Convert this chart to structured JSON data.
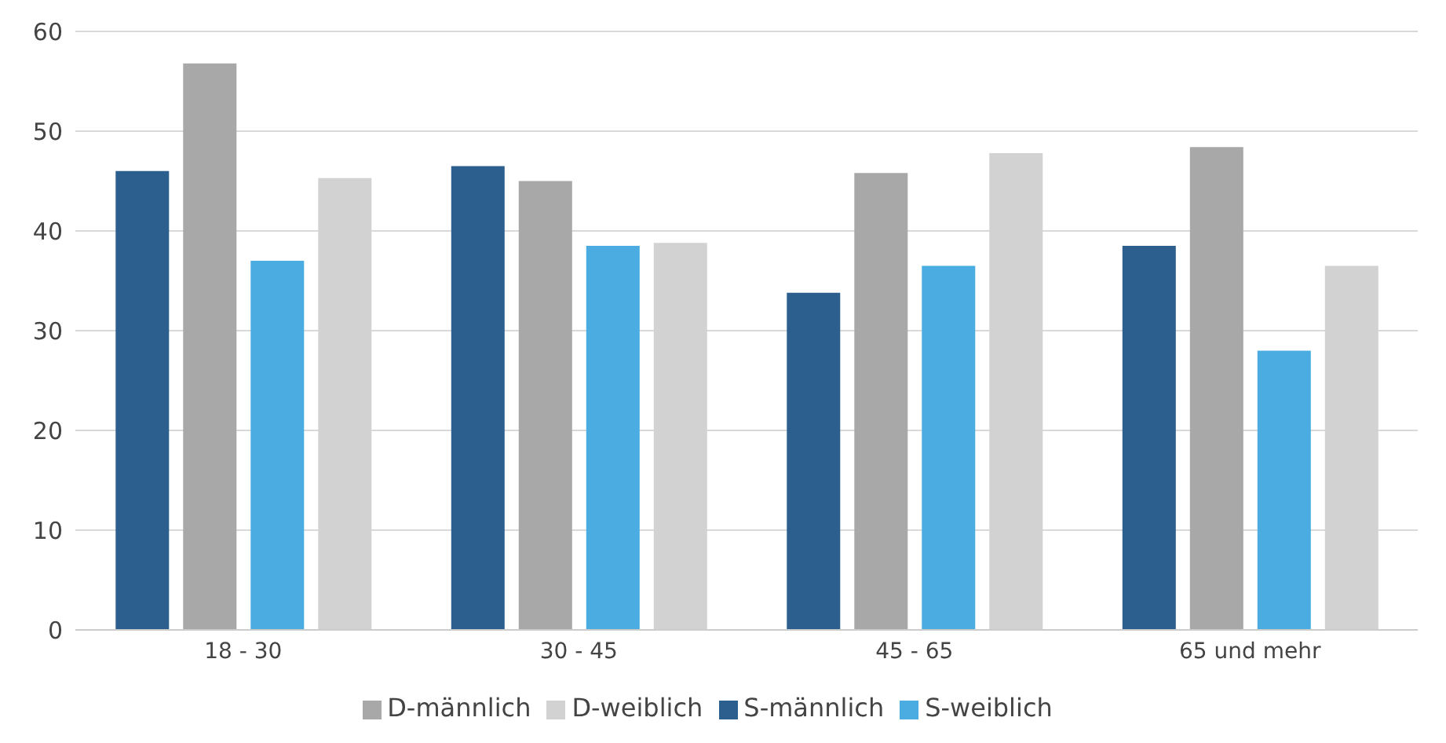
{
  "chart_data": {
    "type": "bar",
    "categories": [
      "18  -  30",
      "30  -  45",
      "45  -  65",
      "65 und mehr"
    ],
    "series": [
      {
        "name": "S-männlich",
        "color": "#2d5f8e",
        "values": [
          46,
          46.5,
          33.8,
          38.5
        ]
      },
      {
        "name": "D-männlich",
        "color": "#a8a8a8",
        "values": [
          56.8,
          45,
          45.8,
          48.4
        ]
      },
      {
        "name": "S-weiblich",
        "color": "#4aace0",
        "values": [
          37,
          38.5,
          36.5,
          28
        ]
      },
      {
        "name": "D-weiblich",
        "color": "#d2d2d2",
        "values": [
          45.3,
          38.8,
          47.8,
          36.5
        ]
      }
    ],
    "ylim": [
      0,
      60
    ],
    "yticks": [
      0,
      10,
      20,
      30,
      40,
      50,
      60
    ],
    "grid": "y",
    "legend": "bottom"
  }
}
